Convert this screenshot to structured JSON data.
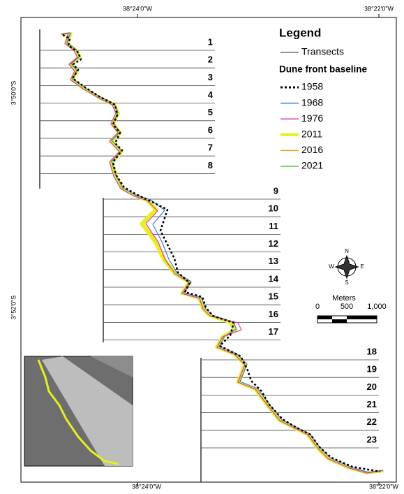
{
  "coordinates": {
    "top": [
      "38°24'0\"W",
      "38°22'0\"W"
    ],
    "bottom": [
      "38°24'0\"W",
      "38°22'0\"W"
    ],
    "left": [
      "3°50'0\"S",
      "3°52'0\"S"
    ]
  },
  "transects": [
    "1",
    "2",
    "3",
    "4",
    "5",
    "6",
    "7",
    "8",
    "9",
    "10",
    "11",
    "12",
    "13",
    "14",
    "15",
    "16",
    "17",
    "18",
    "19",
    "20",
    "21",
    "22",
    "23"
  ],
  "legend": {
    "title": "Legend",
    "transects_label": "Transects",
    "subtitle": "Dune front baseline",
    "items": [
      {
        "name": "1958",
        "color": "#000000",
        "style": "dotted"
      },
      {
        "name": "1968",
        "color": "#3a7fd5",
        "style": "solid"
      },
      {
        "name": "1976",
        "color": "#e23ab4",
        "style": "solid"
      },
      {
        "name": "2011",
        "color": "#e6f01e",
        "style": "thick"
      },
      {
        "name": "2016",
        "color": "#f59a1e",
        "style": "solid"
      },
      {
        "name": "2021",
        "color": "#5cc24a",
        "style": "solid"
      }
    ]
  },
  "compass": {
    "n": "N",
    "s": "S",
    "e": "E",
    "w": "W"
  },
  "scale": {
    "title": "Meters",
    "labels": [
      "0",
      "500",
      "1,000"
    ]
  }
}
